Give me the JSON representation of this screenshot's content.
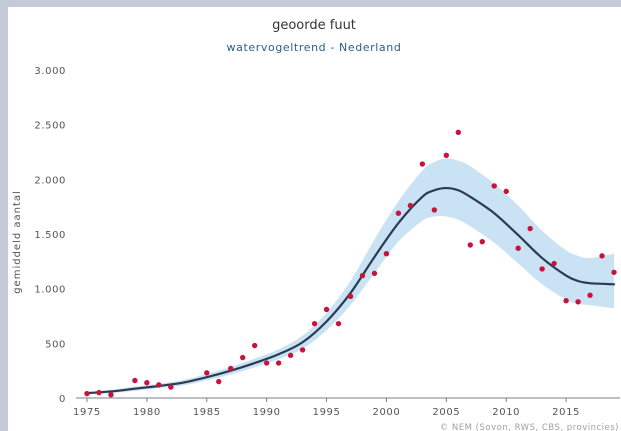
{
  "chart_data": {
    "type": "scatter",
    "title": "geoorde fuut",
    "subtitle": "watervogeltrend - Nederland",
    "xlabel": "",
    "ylabel": "gemiddeld aantal",
    "xlim": [
      1974.5,
      2019.5
    ],
    "ylim": [
      0,
      3000
    ],
    "x_ticks": [
      1975,
      1980,
      1985,
      1990,
      1995,
      2000,
      2005,
      2010,
      2015
    ],
    "y_ticks": [
      0,
      500,
      1000,
      1500,
      2000,
      2500,
      3000
    ],
    "y_tick_labels": [
      "0",
      "500",
      "1.000",
      "1.500",
      "2.000",
      "2.500",
      "3.000"
    ],
    "grid": false,
    "series": [
      {
        "kind": "points",
        "color": "#c8143c",
        "x": [
          1975,
          1976,
          1977,
          1979,
          1980,
          1981,
          1982,
          1985,
          1986,
          1987,
          1988,
          1989,
          1990,
          1991,
          1992,
          1993,
          1994,
          1995,
          1996,
          1997,
          1998,
          1999,
          2000,
          2001,
          2002,
          2003,
          2004,
          2005,
          2006,
          2007,
          2008,
          2009,
          2010,
          2011,
          2012,
          2013,
          2014,
          2015,
          2016,
          2017,
          2018,
          2019
        ],
        "y": [
          40,
          50,
          30,
          160,
          140,
          120,
          100,
          230,
          150,
          270,
          370,
          480,
          320,
          320,
          390,
          440,
          680,
          810,
          680,
          930,
          1120,
          1140,
          1320,
          1690,
          1760,
          2140,
          1720,
          2220,
          2430,
          1400,
          1430,
          1940,
          1890,
          1370,
          1550,
          1180,
          1230,
          890,
          880,
          940,
          1300,
          1150
        ]
      },
      {
        "kind": "trend",
        "color": "#2b3c52",
        "x": [
          1975,
          1977,
          1979,
          1981,
          1983,
          1985,
          1987,
          1989,
          1991,
          1993,
          1995,
          1997,
          1999,
          2001,
          2003,
          2004,
          2005,
          2006,
          2007,
          2009,
          2011,
          2013,
          2015,
          2016,
          2017,
          2019
        ],
        "y": [
          45,
          60,
          85,
          110,
          140,
          190,
          250,
          320,
          400,
          510,
          700,
          960,
          1290,
          1600,
          1840,
          1900,
          1920,
          1900,
          1840,
          1690,
          1490,
          1280,
          1120,
          1070,
          1050,
          1040
        ],
        "lower": [
          35,
          45,
          65,
          90,
          115,
          160,
          215,
          280,
          355,
          450,
          620,
          850,
          1140,
          1430,
          1620,
          1660,
          1660,
          1630,
          1570,
          1420,
          1230,
          1040,
          900,
          860,
          850,
          820
        ],
        "upper": [
          55,
          75,
          105,
          130,
          165,
          220,
          285,
          360,
          445,
          570,
          780,
          1070,
          1450,
          1800,
          2080,
          2160,
          2190,
          2170,
          2120,
          1960,
          1760,
          1530,
          1350,
          1300,
          1280,
          1320
        ],
        "band_color": "#c9e2f4"
      }
    ],
    "credit": "© NEM (Sovon, RWS, CBS, provincies)"
  }
}
